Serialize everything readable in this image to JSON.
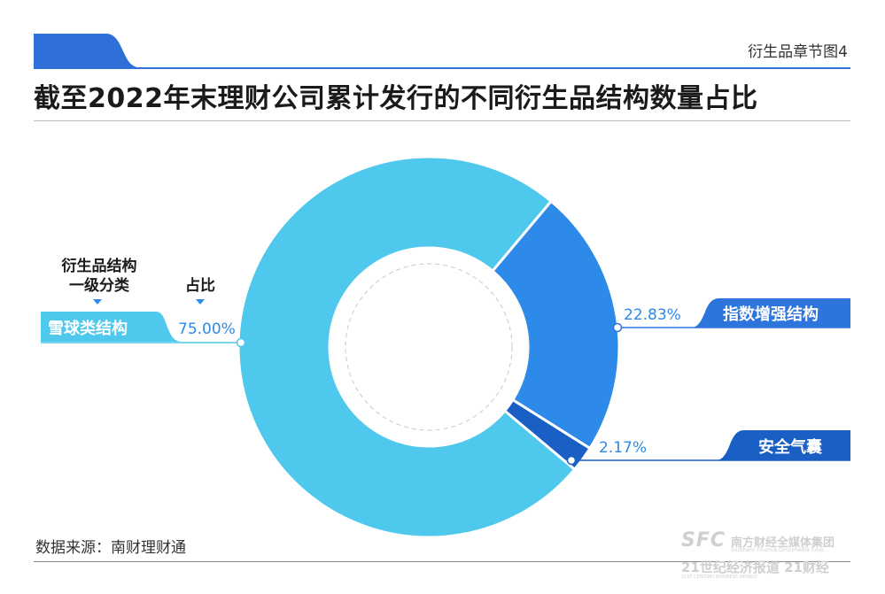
{
  "header": {
    "chapter": "衍生品章节图4",
    "title": "截至2022年末理财公司累计发行的不同衍生品结构数量占比"
  },
  "columns": {
    "structure_line1": "衍生品结构",
    "structure_line2": "一级分类",
    "share": "占比"
  },
  "colors": {
    "tab_blue": "#2f6fd8",
    "snowball": "#4ec8ec",
    "index_enhanced": "#2d8ae8",
    "airbag": "#1a5fc4",
    "label_light": "#4ec8ec",
    "label_dark": "#2d75dd"
  },
  "chart_data": {
    "type": "pie",
    "donut": true,
    "title": "截至2022年末理财公司累计发行的不同衍生品结构数量占比",
    "slices": [
      {
        "name": "雪球类结构",
        "value": 75.0,
        "label": "75.00%",
        "color": "#4ec8ec"
      },
      {
        "name": "指数增强结构",
        "value": 22.83,
        "label": "22.83%",
        "color": "#2d8ae8"
      },
      {
        "name": "安全气囊",
        "value": 2.17,
        "label": "2.17%",
        "color": "#1a5fc4"
      }
    ]
  },
  "footer": {
    "source": "数据来源：南财理财通",
    "logo_sfc": "SFC",
    "logo_cn": "南方财经全媒体集团",
    "logo_en1": "Southern Finance Omnimedia Corp.",
    "logo_line2": "21世纪经济报道 21财经",
    "logo_en2": "21ST CENTURY BUSINESS HERALD"
  }
}
